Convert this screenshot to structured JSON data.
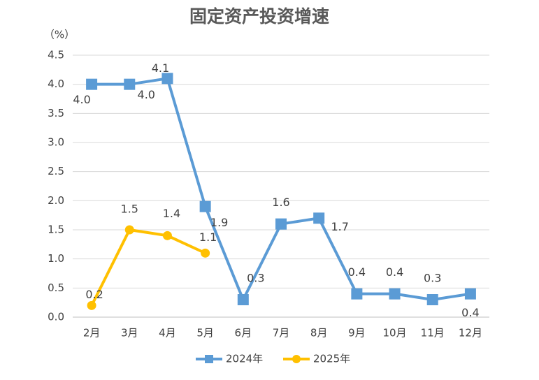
{
  "chart_data": {
    "type": "line",
    "title": "固定资产投资增速",
    "ylabel": "（%）",
    "categories": [
      "2月",
      "3月",
      "4月",
      "5月",
      "6月",
      "7月",
      "8月",
      "9月",
      "10月",
      "11月",
      "12月"
    ],
    "series": [
      {
        "name": "2024年",
        "color": "#5b9bd5",
        "marker": "square",
        "values": [
          4.0,
          4.0,
          4.1,
          1.9,
          0.3,
          1.6,
          1.7,
          0.4,
          0.4,
          0.3,
          0.4
        ],
        "value_labels": [
          "4.0",
          "4.0",
          "4.1",
          "1.9",
          "0.3",
          "1.6",
          "1.7",
          "0.4",
          "0.4",
          "0.3",
          "0.4"
        ]
      },
      {
        "name": "2025年",
        "color": "#ffc000",
        "marker": "circle",
        "values": [
          0.2,
          1.5,
          1.4,
          1.1,
          null,
          null,
          null,
          null,
          null,
          null,
          null
        ],
        "value_labels": [
          "0.2",
          "1.5",
          "1.4",
          "1.1",
          null,
          null,
          null,
          null,
          null,
          null,
          null
        ]
      }
    ],
    "ylim": [
      0,
      4.5
    ],
    "yticks": [
      {
        "value": 0,
        "label": "0.0"
      },
      0.5,
      {
        "value": 1,
        "label": "1.0"
      },
      1.5,
      {
        "value": 2,
        "label": "2.0"
      },
      2.5,
      {
        "value": 3,
        "label": "3.0"
      },
      3.5,
      {
        "value": 4,
        "label": "4.0"
      },
      4.5
    ],
    "grid": true,
    "legend": "bottom"
  }
}
